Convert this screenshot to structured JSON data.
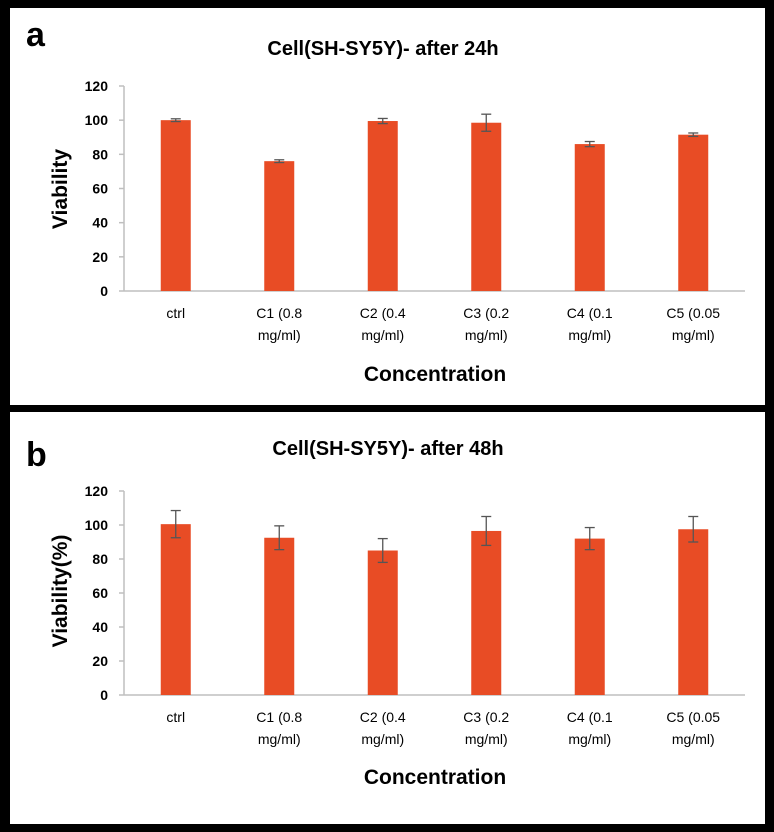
{
  "chart_data": [
    {
      "panel_label": "a",
      "type": "bar",
      "title": "Cell(SH-SY5Y)- after 24h",
      "xlabel": "Concentration",
      "ylabel": "Viability",
      "ylim": [
        0,
        120
      ],
      "yticks": [
        "0",
        "20",
        "40",
        "60",
        "80",
        "100",
        "120"
      ],
      "categories": [
        [
          "ctrl"
        ],
        [
          "C1 (0.8",
          "mg/ml)"
        ],
        [
          "C2 (0.4",
          "mg/ml)"
        ],
        [
          "C3 (0.2",
          "mg/ml)"
        ],
        [
          "C4 (0.1",
          "mg/ml)"
        ],
        [
          "C5 (0.05",
          "mg/ml)"
        ]
      ],
      "values": [
        100,
        76,
        99.5,
        98.5,
        86,
        91.5
      ],
      "errors": [
        0.8,
        0.8,
        1.5,
        5.0,
        1.5,
        1.0
      ],
      "grid": false,
      "legend": "none"
    },
    {
      "panel_label": "b",
      "type": "bar",
      "title": "Cell(SH-SY5Y)- after 48h",
      "xlabel": "Concentration",
      "ylabel": "Viability(%)",
      "ylim": [
        0,
        120
      ],
      "yticks": [
        "0",
        "20",
        "40",
        "60",
        "80",
        "100",
        "120"
      ],
      "categories": [
        [
          "ctrl"
        ],
        [
          "C1 (0.8",
          "mg/ml)"
        ],
        [
          "C2 (0.4",
          "mg/ml)"
        ],
        [
          "C3 (0.2",
          "mg/ml)"
        ],
        [
          "C4 (0.1",
          "mg/ml)"
        ],
        [
          "C5 (0.05",
          "mg/ml)"
        ]
      ],
      "values": [
        100.5,
        92.5,
        85,
        96.5,
        92,
        97.5
      ],
      "errors": [
        8,
        7,
        7,
        8.5,
        6.5,
        7.5
      ],
      "grid": false,
      "legend": "none"
    }
  ],
  "colors": {
    "bar": "#e84c25",
    "axis": "#bfbfbf",
    "frame": "#000000",
    "panel": "#ffffff",
    "text": "#000000"
  }
}
